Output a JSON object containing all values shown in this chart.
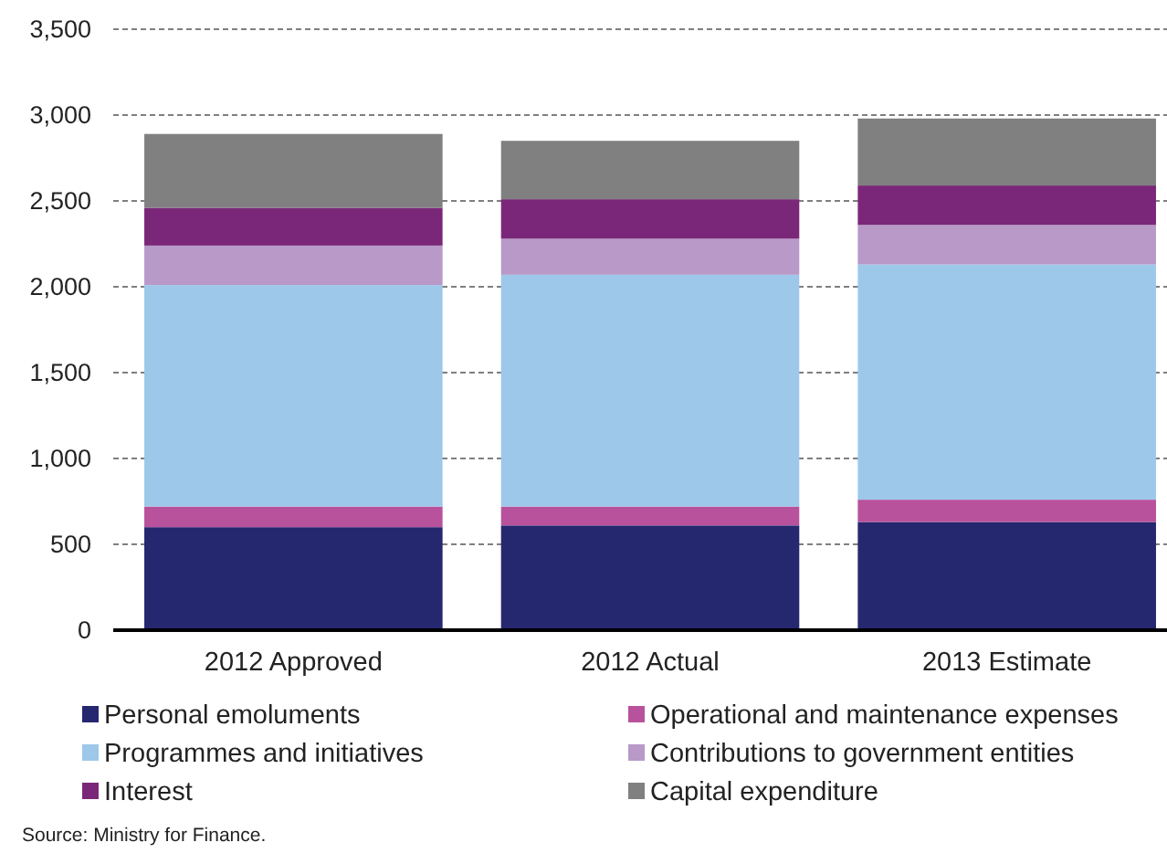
{
  "chart_data": {
    "type": "bar",
    "stacked": true,
    "categories": [
      "2012 Approved",
      "2012 Actual",
      "2013 Estimate"
    ],
    "series": [
      {
        "name": "Personal emoluments",
        "color": "#25276f",
        "values": [
          600,
          610,
          630
        ]
      },
      {
        "name": "Operational and maintenance expenses",
        "color": "#b9529c",
        "values": [
          120,
          110,
          130
        ]
      },
      {
        "name": "Programmes and initiatives",
        "color": "#9dc8ea",
        "values": [
          1290,
          1350,
          1370
        ]
      },
      {
        "name": "Contributions to government entities",
        "color": "#b899c8",
        "values": [
          230,
          210,
          230
        ]
      },
      {
        "name": "Interest",
        "color": "#7b2779",
        "values": [
          220,
          230,
          230
        ]
      },
      {
        "name": "Capital expenditure",
        "color": "#808080",
        "values": [
          430,
          340,
          390
        ]
      }
    ],
    "ylim": [
      0,
      3500
    ],
    "yticks": [
      0,
      500,
      {
        "value": 1000,
        "label": "1,000"
      },
      {
        "value": 1500,
        "label": "1,500"
      },
      {
        "value": 2000,
        "label": "2,000"
      },
      {
        "value": 2500,
        "label": "2,500"
      },
      {
        "value": 3000,
        "label": "3,000"
      },
      {
        "value": 3500,
        "label": "3,500"
      }
    ],
    "grid": "y",
    "legend": "bottom",
    "annotations": [
      "Source: Ministry for Finance."
    ]
  }
}
